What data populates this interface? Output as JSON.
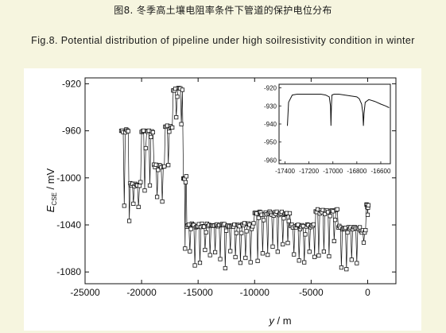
{
  "caption": {
    "zh": "图8. 冬季高土壤电阻率条件下管道的保护电位分布",
    "en": "Fig.8. Potential distribution of pipeline under high soilresistivity condition in winter"
  },
  "colors": {
    "background": "#f6f5df",
    "panel": "#ffffff",
    "ink": "#111111"
  },
  "chart_data": [
    {
      "type": "scatter",
      "marker": "open-square",
      "connect_points": true,
      "xlabel": "y / m",
      "ylabel_main": "E",
      "ylabel_subscript": "CSE",
      "ylabel_unit": " / mV",
      "xlim": [
        -25000,
        2500
      ],
      "ylim": [
        -1090,
        -915
      ],
      "xticks": [
        -25000,
        -20000,
        -15000,
        -10000,
        -5000,
        0
      ],
      "yticks": [
        -920,
        -960,
        -1000,
        -1040,
        -1080
      ],
      "segments": [
        {
          "x_start": -21800,
          "x_end": -21000,
          "y_base": -960,
          "y_dip": -1045
        },
        {
          "x_start": -21000,
          "x_end": -20000,
          "y_base": -1005,
          "y_dip": -1025
        },
        {
          "x_start": -20000,
          "x_end": -18900,
          "y_base": -960,
          "y_dip": -1035
        },
        {
          "x_start": -18900,
          "x_end": -17900,
          "y_base": -990,
          "y_dip": -1030
        },
        {
          "x_start": -17900,
          "x_end": -17200,
          "y_base": -957,
          "y_dip": -1000
        },
        {
          "x_start": -17200,
          "x_end": -16300,
          "y_base": -925,
          "y_dip": -960
        },
        {
          "x_start": -16300,
          "x_end": -16000,
          "y_base": -1000,
          "y_dip": -1070
        },
        {
          "x_start": -16000,
          "x_end": -10000,
          "y_base": -1040,
          "y_dip": -1078
        },
        {
          "x_start": -10000,
          "x_end": -6800,
          "y_base": -1030,
          "y_dip": -1075
        },
        {
          "x_start": -6800,
          "x_end": -4600,
          "y_base": -1041,
          "y_dip": -1078
        },
        {
          "x_start": -4600,
          "x_end": -2600,
          "y_base": -1028,
          "y_dip": -1070
        },
        {
          "x_start": -2600,
          "x_end": -600,
          "y_base": -1042,
          "y_dip": -1078
        },
        {
          "x_start": -600,
          "x_end": -100,
          "y_base": -1045,
          "y_dip": -1062
        },
        {
          "x_start": -100,
          "x_end": 100,
          "y_base": -1024,
          "y_dip": -1032
        }
      ]
    },
    {
      "type": "line",
      "inset": true,
      "xlim": [
        -17450,
        -16520
      ],
      "ylim": [
        -962,
        -918
      ],
      "xticks": [
        -17400,
        -17200,
        -17000,
        -16800,
        -16600
      ],
      "yticks": [
        -920,
        -930,
        -940,
        -950,
        -960
      ],
      "x": [
        -17380,
        -17370,
        -17340,
        -17300,
        -17250,
        -17200,
        -17150,
        -17100,
        -17060,
        -17030,
        -17020,
        -17016,
        -17012,
        -17008,
        -16990,
        -16950,
        -16900,
        -16850,
        -16800,
        -16780,
        -16760,
        -16750,
        -16745,
        -16740,
        -16730,
        -16700,
        -16650,
        -16600,
        -16560,
        -16530
      ],
      "y": [
        -941,
        -928,
        -924,
        -923.5,
        -923.5,
        -923.5,
        -923.5,
        -923.5,
        -924,
        -925,
        -930,
        -941,
        -930,
        -924,
        -923.5,
        -923.5,
        -924,
        -924.5,
        -925,
        -926,
        -929,
        -934,
        -941,
        -934,
        -928,
        -926.5,
        -927.5,
        -929,
        -930,
        -931
      ]
    }
  ]
}
